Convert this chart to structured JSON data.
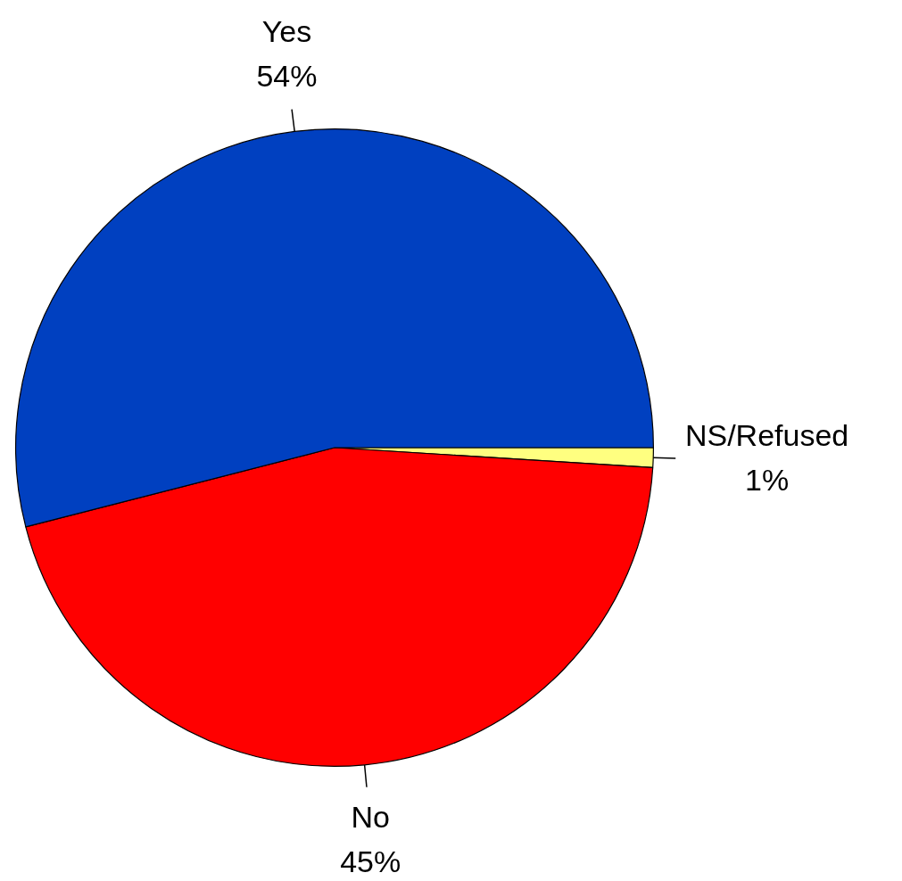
{
  "chart_data": {
    "type": "pie",
    "categories": [
      "Yes",
      "No",
      "NS/Refused"
    ],
    "values": [
      54,
      45,
      1
    ],
    "colors": [
      "#0040c0",
      "#ff0000",
      "#ffff80"
    ],
    "value_labels": [
      "54%",
      "45%",
      "1%"
    ],
    "legend": false
  }
}
